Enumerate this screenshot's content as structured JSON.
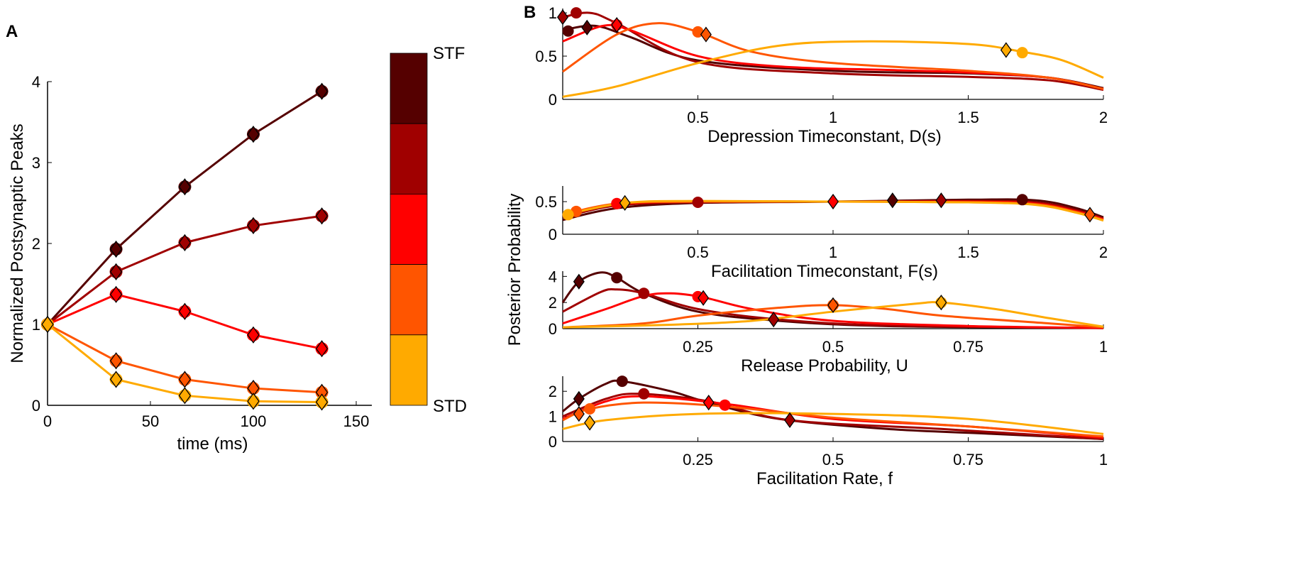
{
  "colors": [
    "#550000",
    "#a00000",
    "#ff0000",
    "#ff5500",
    "#ffaa00"
  ],
  "panel_labels": {
    "a": "A",
    "b": "B"
  },
  "colorbar": {
    "top_label": "STF",
    "bottom_label": "STD"
  },
  "b_shared_ylabel": "Posterior Probability",
  "chart_data": [
    {
      "type": "line",
      "panel": "A",
      "xlabel": "time (ms)",
      "ylabel": "Normalized Postsynaptic Peaks",
      "xlim": [
        0,
        150
      ],
      "ylim": [
        0,
        4
      ],
      "xticks": [
        0,
        50,
        100,
        150
      ],
      "yticks": [
        0,
        1,
        2,
        3,
        4
      ],
      "x": [
        0,
        33.3,
        66.7,
        100,
        133.3
      ],
      "series": [
        {
          "values": [
            1,
            1.93,
            2.7,
            3.35,
            3.88
          ]
        },
        {
          "values": [
            1,
            1.65,
            2.01,
            2.22,
            2.34
          ]
        },
        {
          "values": [
            1,
            1.37,
            1.16,
            0.87,
            0.7
          ]
        },
        {
          "values": [
            1,
            0.55,
            0.32,
            0.21,
            0.16
          ]
        },
        {
          "values": [
            1,
            0.32,
            0.12,
            0.05,
            0.04
          ]
        }
      ]
    },
    {
      "type": "line",
      "panel": "B",
      "xlabel": "Depression Timeconstant, D(s)",
      "xlim": [
        0,
        2
      ],
      "ylim": [
        0,
        1.05
      ],
      "xticks": [
        "0.5",
        "1",
        "1.5",
        "2"
      ],
      "yticks": [
        "0",
        "0.5",
        "1"
      ],
      "series": [
        {
          "points": [
            [
              0,
              0.8
            ],
            [
              0.12,
              0.85
            ],
            [
              0.25,
              0.72
            ],
            [
              0.5,
              0.45
            ],
            [
              1,
              0.33
            ],
            [
              1.5,
              0.3
            ],
            [
              1.8,
              0.25
            ],
            [
              2,
              0.13
            ]
          ],
          "circle": [
            0.02,
            0.79
          ],
          "diamond": [
            0.09,
            0.83
          ]
        },
        {
          "points": [
            [
              0,
              0.95
            ],
            [
              0.1,
              1.0
            ],
            [
              0.2,
              0.88
            ],
            [
              0.5,
              0.43
            ],
            [
              1,
              0.3
            ],
            [
              1.5,
              0.26
            ],
            [
              1.8,
              0.22
            ],
            [
              2,
              0.11
            ]
          ],
          "circle": [
            0.05,
            1.0
          ],
          "diamond": [
            0.0,
            0.95
          ]
        },
        {
          "points": [
            [
              0,
              0.67
            ],
            [
              0.15,
              0.85
            ],
            [
              0.25,
              0.8
            ],
            [
              0.5,
              0.5
            ],
            [
              0.8,
              0.38
            ],
            [
              1.2,
              0.34
            ],
            [
              1.5,
              0.31
            ],
            [
              1.8,
              0.25
            ],
            [
              2,
              0.12
            ]
          ],
          "circle": [
            0.2,
            0.86
          ],
          "diamond": [
            0.2,
            0.86
          ]
        },
        {
          "points": [
            [
              0,
              0.32
            ],
            [
              0.2,
              0.75
            ],
            [
              0.35,
              0.88
            ],
            [
              0.5,
              0.78
            ],
            [
              0.7,
              0.55
            ],
            [
              1,
              0.42
            ],
            [
              1.5,
              0.33
            ],
            [
              1.8,
              0.25
            ],
            [
              2,
              0.12
            ]
          ],
          "circle": [
            0.5,
            0.78
          ],
          "diamond": [
            0.53,
            0.75
          ]
        },
        {
          "points": [
            [
              0,
              0.03
            ],
            [
              0.2,
              0.15
            ],
            [
              0.5,
              0.42
            ],
            [
              0.8,
              0.62
            ],
            [
              1.1,
              0.67
            ],
            [
              1.5,
              0.64
            ],
            [
              1.7,
              0.55
            ],
            [
              1.85,
              0.45
            ],
            [
              2,
              0.25
            ]
          ],
          "circle": [
            1.7,
            0.54
          ],
          "diamond": [
            1.64,
            0.57
          ]
        }
      ]
    },
    {
      "type": "line",
      "panel": "B",
      "xlabel": "Facilitation Timeconstant, F(s)",
      "xlim": [
        0,
        2
      ],
      "ylim": [
        0,
        0.74
      ],
      "xticks": [
        "0.5",
        "1",
        "1.5",
        "2"
      ],
      "yticks": [
        "0",
        "0.5"
      ],
      "series": [
        {
          "points": [
            [
              0,
              0.22
            ],
            [
              0.2,
              0.4
            ],
            [
              0.5,
              0.48
            ],
            [
              1,
              0.5
            ],
            [
              1.5,
              0.53
            ],
            [
              1.75,
              0.52
            ],
            [
              1.9,
              0.4
            ],
            [
              2,
              0.26
            ]
          ],
          "circle": [
            1.7,
            0.53
          ],
          "diamond": [
            1.22,
            0.52
          ]
        },
        {
          "points": [
            [
              0,
              0.26
            ],
            [
              0.2,
              0.44
            ],
            [
              0.5,
              0.49
            ],
            [
              1,
              0.5
            ],
            [
              1.5,
              0.51
            ],
            [
              1.75,
              0.49
            ],
            [
              1.9,
              0.37
            ],
            [
              2,
              0.24
            ]
          ],
          "circle": [
            0.5,
            0.49
          ],
          "diamond": [
            1.4,
            0.52
          ]
        },
        {
          "points": [
            [
              0,
              0.28
            ],
            [
              0.2,
              0.46
            ],
            [
              0.5,
              0.5
            ],
            [
              1,
              0.5
            ],
            [
              1.5,
              0.5
            ],
            [
              1.75,
              0.47
            ],
            [
              1.9,
              0.35
            ],
            [
              2,
              0.23
            ]
          ],
          "circle": [
            0.2,
            0.47
          ],
          "diamond": [
            1.0,
            0.5
          ]
        },
        {
          "points": [
            [
              0,
              0.3
            ],
            [
              0.2,
              0.47
            ],
            [
              0.5,
              0.5
            ],
            [
              1,
              0.5
            ],
            [
              1.5,
              0.49
            ],
            [
              1.75,
              0.46
            ],
            [
              1.9,
              0.34
            ],
            [
              2,
              0.22
            ]
          ],
          "circle": [
            0.05,
            0.35
          ],
          "diamond": [
            1.95,
            0.3
          ]
        },
        {
          "points": [
            [
              0,
              0.29
            ],
            [
              0.23,
              0.48
            ],
            [
              0.5,
              0.51
            ],
            [
              1,
              0.5
            ],
            [
              1.5,
              0.49
            ],
            [
              1.75,
              0.45
            ],
            [
              1.9,
              0.33
            ],
            [
              2,
              0.21
            ]
          ],
          "circle": [
            0.02,
            0.3
          ],
          "diamond": [
            0.23,
            0.48
          ]
        }
      ]
    },
    {
      "type": "line",
      "panel": "B",
      "xlabel": "Release Probability, U",
      "xlim": [
        0,
        1
      ],
      "ylim": [
        0,
        4.4
      ],
      "xticks": [
        "0.25",
        "0.5",
        "0.75",
        "1"
      ],
      "yticks": [
        "0",
        "2",
        "4"
      ],
      "series": [
        {
          "points": [
            [
              0,
              2.0
            ],
            [
              0.03,
              3.6
            ],
            [
              0.07,
              4.3
            ],
            [
              0.1,
              3.9
            ],
            [
              0.15,
              2.7
            ],
            [
              0.25,
              1.3
            ],
            [
              0.4,
              0.6
            ],
            [
              0.6,
              0.2
            ],
            [
              1,
              0.05
            ]
          ],
          "circle": [
            0.1,
            3.9
          ],
          "diamond": [
            0.03,
            3.6
          ]
        },
        {
          "points": [
            [
              0,
              1.3
            ],
            [
              0.07,
              2.8
            ],
            [
              0.1,
              3.0
            ],
            [
              0.15,
              2.7
            ],
            [
              0.25,
              1.5
            ],
            [
              0.4,
              0.7
            ],
            [
              0.6,
              0.25
            ],
            [
              1,
              0.05
            ]
          ],
          "circle": [
            0.15,
            2.7
          ],
          "diamond": [
            0.39,
            0.7
          ]
        },
        {
          "points": [
            [
              0,
              0.4
            ],
            [
              0.08,
              1.5
            ],
            [
              0.15,
              2.5
            ],
            [
              0.2,
              2.7
            ],
            [
              0.26,
              2.4
            ],
            [
              0.35,
              1.5
            ],
            [
              0.5,
              0.6
            ],
            [
              0.75,
              0.2
            ],
            [
              1,
              0.05
            ]
          ],
          "circle": [
            0.25,
            2.45
          ],
          "diamond": [
            0.26,
            2.35
          ]
        },
        {
          "points": [
            [
              0,
              0.1
            ],
            [
              0.15,
              0.4
            ],
            [
              0.25,
              1.0
            ],
            [
              0.4,
              1.6
            ],
            [
              0.5,
              1.8
            ],
            [
              0.6,
              1.5
            ],
            [
              0.7,
              1.0
            ],
            [
              0.9,
              0.4
            ],
            [
              1,
              0.1
            ]
          ],
          "circle": [
            0.5,
            1.8
          ],
          "diamond": [
            0.5,
            1.8
          ]
        },
        {
          "points": [
            [
              0,
              0.1
            ],
            [
              0.2,
              0.3
            ],
            [
              0.35,
              0.6
            ],
            [
              0.5,
              1.3
            ],
            [
              0.65,
              1.9
            ],
            [
              0.7,
              2.0
            ],
            [
              0.8,
              1.5
            ],
            [
              0.9,
              0.8
            ],
            [
              1,
              0.15
            ]
          ],
          "circle": [
            0.7,
            2.0
          ],
          "diamond": [
            0.7,
            2.0
          ]
        }
      ]
    },
    {
      "type": "line",
      "panel": "B",
      "xlabel": "Facilitation Rate, f",
      "xlim": [
        0,
        1
      ],
      "ylim": [
        0,
        2.6
      ],
      "xticks": [
        "0.25",
        "0.5",
        "0.75",
        "1"
      ],
      "yticks": [
        "0",
        "1",
        "2"
      ],
      "series": [
        {
          "points": [
            [
              0,
              1.2
            ],
            [
              0.03,
              1.7
            ],
            [
              0.08,
              2.3
            ],
            [
              0.11,
              2.4
            ],
            [
              0.2,
              2.0
            ],
            [
              0.27,
              1.55
            ],
            [
              0.4,
              0.9
            ],
            [
              0.6,
              0.5
            ],
            [
              0.8,
              0.3
            ],
            [
              1,
              0.1
            ]
          ],
          "circle": [
            0.11,
            2.4
          ],
          "diamond": [
            0.03,
            1.7
          ]
        },
        {
          "points": [
            [
              0,
              1.0
            ],
            [
              0.08,
              1.7
            ],
            [
              0.14,
              1.9
            ],
            [
              0.27,
              1.6
            ],
            [
              0.42,
              0.85
            ],
            [
              0.7,
              0.5
            ],
            [
              1,
              0.1
            ]
          ],
          "circle": [
            0.15,
            1.9
          ],
          "diamond": [
            0.42,
            0.85
          ]
        },
        {
          "points": [
            [
              0,
              0.9
            ],
            [
              0.08,
              1.6
            ],
            [
              0.15,
              1.8
            ],
            [
              0.3,
              1.5
            ],
            [
              0.5,
              0.9
            ],
            [
              0.75,
              0.6
            ],
            [
              1,
              0.15
            ]
          ],
          "circle": [
            0.3,
            1.45
          ],
          "diamond": [
            0.27,
            1.55
          ]
        },
        {
          "points": [
            [
              0,
              0.85
            ],
            [
              0.05,
              1.3
            ],
            [
              0.15,
              1.55
            ],
            [
              0.3,
              1.4
            ],
            [
              0.5,
              0.95
            ],
            [
              0.75,
              0.6
            ],
            [
              1,
              0.2
            ]
          ],
          "circle": [
            0.05,
            1.3
          ],
          "diamond": [
            0.03,
            1.1
          ]
        },
        {
          "points": [
            [
              0,
              0.5
            ],
            [
              0.08,
              0.85
            ],
            [
              0.25,
              1.1
            ],
            [
              0.5,
              1.1
            ],
            [
              0.75,
              0.9
            ],
            [
              1,
              0.3
            ]
          ],
          "circle": null,
          "diamond": [
            0.05,
            0.75
          ]
        }
      ]
    }
  ]
}
